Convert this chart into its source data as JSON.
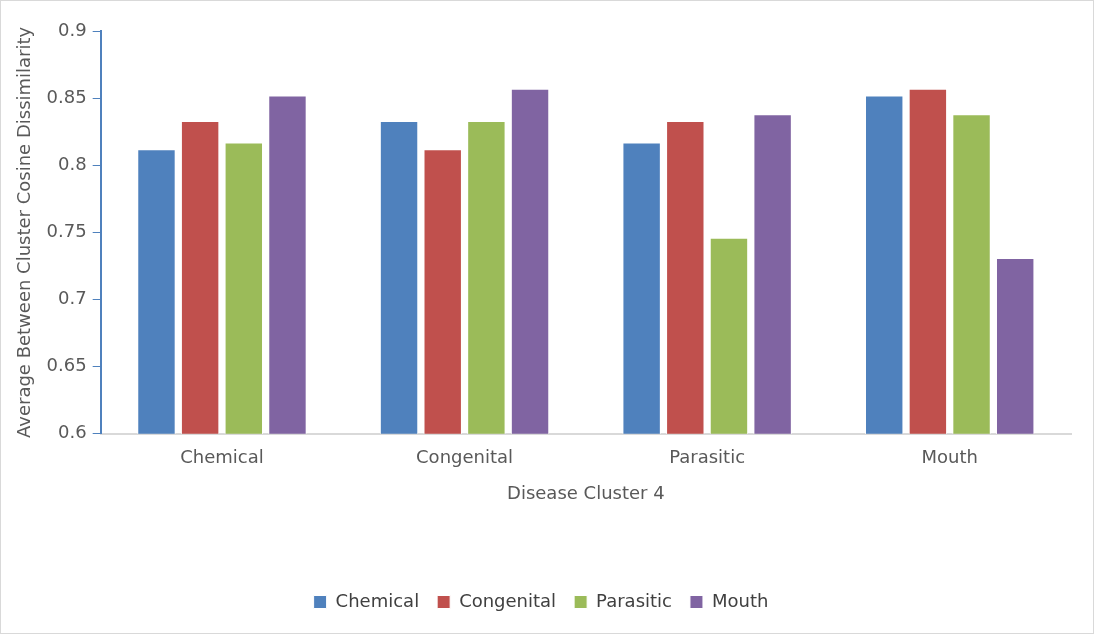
{
  "chart_data": {
    "type": "bar",
    "xlabel": "Disease Cluster 4",
    "ylabel": "Average Between Cluster Cosine Dissimilarity",
    "categories": [
      "Chemical",
      "Congenital",
      "Parasitic",
      "Mouth"
    ],
    "series": [
      {
        "name": "Chemical",
        "color": "#4f81bd",
        "values": [
          0.812,
          0.833,
          0.817,
          0.852
        ]
      },
      {
        "name": "Congenital",
        "color": "#c0504d",
        "values": [
          0.833,
          0.812,
          0.833,
          0.857
        ]
      },
      {
        "name": "Parasitic",
        "color": "#9bbb59",
        "values": [
          0.817,
          0.833,
          0.746,
          0.838
        ]
      },
      {
        "name": "Mouth",
        "color": "#8064a2",
        "values": [
          0.852,
          0.857,
          0.838,
          0.731
        ]
      }
    ],
    "ylim": [
      0.6,
      0.9
    ],
    "yticks": [
      0.6,
      0.65,
      0.7,
      0.75,
      0.8,
      0.85,
      0.9
    ],
    "grid": false,
    "legend": "bottom"
  }
}
